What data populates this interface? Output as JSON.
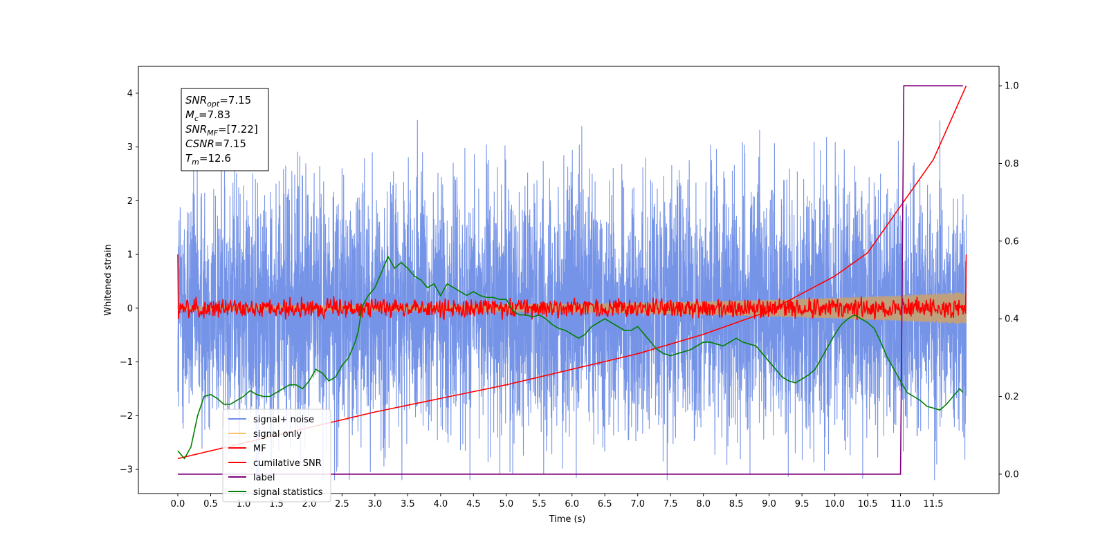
{
  "chart_data": {
    "type": "line",
    "xlabel": "Time (s)",
    "ylabel": "Whitened strain",
    "xlim": [
      -0.6,
      12.5
    ],
    "ylim": [
      -3.45,
      4.5
    ],
    "y2lim": [
      -0.05,
      1.05
    ],
    "xticks": [
      "0.0",
      "0.5",
      "1.0",
      "1.5",
      "2.0",
      "2.5",
      "3.0",
      "3.5",
      "4.0",
      "4.5",
      "5.0",
      "5.5",
      "6.0",
      "6.5",
      "7.0",
      "7.5",
      "8.0",
      "8.5",
      "9.0",
      "9.5",
      "10.0",
      "10.5",
      "11.0",
      "11.5"
    ],
    "yticks": [
      "−3",
      "−2",
      "−1",
      "0",
      "1",
      "2",
      "3",
      "4"
    ],
    "y2ticks": [
      "0.0",
      "0.2",
      "0.4",
      "0.6",
      "0.8",
      "1.0"
    ],
    "annotation": [
      {
        "base": "SNR",
        "sub": "opt",
        "rest": "=7.15"
      },
      {
        "base": "M",
        "sub": "c",
        "rest": "=7.83"
      },
      {
        "base": "SNR",
        "sub": "MF",
        "rest": "=[7.22]"
      },
      {
        "base": "CSNR",
        "sub": "",
        "rest": "=7.15"
      },
      {
        "base": "T",
        "sub": "m",
        "rest": "=12.6"
      }
    ],
    "legend_position": "lower-left",
    "series": [
      {
        "name": "signal+ noise",
        "color": "#6f8ee6",
        "axis": "left",
        "style": "noise",
        "x_range": [
          0.0,
          12.0
        ],
        "amplitude": 2.2
      },
      {
        "name": "signal only",
        "color": "#ffc266",
        "axis": "left",
        "style": "chirp",
        "x_range": [
          0.0,
          12.0
        ],
        "amp_start": 0.05,
        "amp_end": 0.3
      },
      {
        "name": "MF",
        "color": "#ff0000",
        "axis": "left",
        "style": "mf",
        "x_range": [
          0.0,
          12.0
        ],
        "start_value": 1.0,
        "end_value": 1.0,
        "amplitude": 0.15
      },
      {
        "name": "cumilative SNR",
        "color": "#ff0000",
        "axis": "right",
        "x": [
          0.0,
          1.0,
          2.0,
          3.0,
          4.0,
          5.0,
          6.0,
          7.0,
          8.0,
          9.0,
          10.0,
          10.5,
          11.0,
          11.5,
          12.0
        ],
        "y": [
          0.04,
          0.08,
          0.12,
          0.16,
          0.195,
          0.23,
          0.27,
          0.31,
          0.36,
          0.42,
          0.51,
          0.57,
          0.69,
          0.81,
          1.0
        ]
      },
      {
        "name": "label",
        "color": "#800080",
        "axis": "right",
        "x": [
          0.0,
          11.0,
          11.05,
          11.95
        ],
        "y": [
          0.0,
          0.0,
          1.0,
          1.0
        ]
      },
      {
        "name": "signal statistics",
        "color": "#008000",
        "axis": "right",
        "x": [
          0.0,
          0.1,
          0.2,
          0.3,
          0.4,
          0.5,
          0.6,
          0.7,
          0.8,
          0.9,
          1.0,
          1.1,
          1.2,
          1.3,
          1.4,
          1.5,
          1.6,
          1.7,
          1.8,
          1.9,
          2.0,
          2.1,
          2.2,
          2.3,
          2.4,
          2.5,
          2.6,
          2.7,
          2.75,
          2.8,
          2.9,
          3.0,
          3.1,
          3.2,
          3.3,
          3.4,
          3.5,
          3.6,
          3.7,
          3.8,
          3.9,
          4.0,
          4.1,
          4.2,
          4.3,
          4.4,
          4.5,
          4.6,
          4.7,
          4.8,
          4.9,
          5.0,
          5.1,
          5.2,
          5.3,
          5.4,
          5.5,
          5.6,
          5.7,
          5.8,
          5.9,
          6.0,
          6.1,
          6.2,
          6.3,
          6.4,
          6.5,
          6.6,
          6.7,
          6.8,
          6.9,
          7.0,
          7.1,
          7.2,
          7.3,
          7.4,
          7.5,
          7.6,
          7.7,
          7.8,
          7.9,
          8.0,
          8.1,
          8.2,
          8.3,
          8.4,
          8.5,
          8.6,
          8.7,
          8.8,
          8.9,
          9.0,
          9.1,
          9.2,
          9.3,
          9.4,
          9.5,
          9.6,
          9.7,
          9.8,
          9.9,
          10.0,
          10.1,
          10.2,
          10.3,
          10.4,
          10.5,
          10.6,
          10.7,
          10.8,
          10.9,
          11.0,
          11.1,
          11.2,
          11.3,
          11.4,
          11.5,
          11.6,
          11.7,
          11.8,
          11.9,
          11.95
        ],
        "y": [
          0.06,
          0.04,
          0.07,
          0.15,
          0.2,
          0.205,
          0.195,
          0.18,
          0.18,
          0.19,
          0.2,
          0.215,
          0.205,
          0.2,
          0.2,
          0.21,
          0.22,
          0.23,
          0.23,
          0.22,
          0.24,
          0.27,
          0.26,
          0.24,
          0.25,
          0.28,
          0.3,
          0.34,
          0.37,
          0.43,
          0.46,
          0.48,
          0.52,
          0.56,
          0.53,
          0.545,
          0.53,
          0.51,
          0.5,
          0.48,
          0.49,
          0.46,
          0.49,
          0.48,
          0.47,
          0.46,
          0.47,
          0.46,
          0.455,
          0.455,
          0.45,
          0.45,
          0.42,
          0.41,
          0.41,
          0.405,
          0.41,
          0.4,
          0.385,
          0.375,
          0.37,
          0.36,
          0.35,
          0.36,
          0.38,
          0.39,
          0.4,
          0.39,
          0.38,
          0.37,
          0.37,
          0.38,
          0.36,
          0.34,
          0.32,
          0.31,
          0.305,
          0.31,
          0.315,
          0.32,
          0.33,
          0.34,
          0.34,
          0.335,
          0.33,
          0.34,
          0.35,
          0.34,
          0.335,
          0.33,
          0.31,
          0.29,
          0.27,
          0.25,
          0.24,
          0.235,
          0.245,
          0.255,
          0.27,
          0.3,
          0.33,
          0.36,
          0.385,
          0.4,
          0.41,
          0.4,
          0.39,
          0.375,
          0.34,
          0.3,
          0.27,
          0.24,
          0.21,
          0.2,
          0.19,
          0.175,
          0.17,
          0.165,
          0.18,
          0.2,
          0.22,
          0.21
        ]
      }
    ]
  },
  "colors": {
    "axes": "#000000",
    "background": "#ffffff"
  }
}
